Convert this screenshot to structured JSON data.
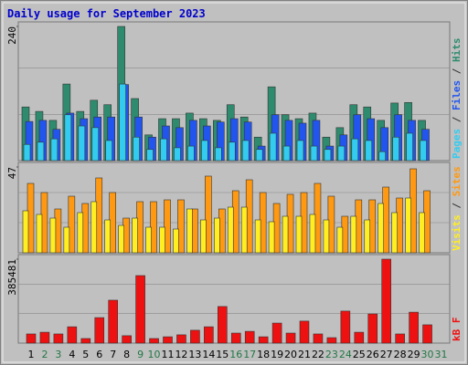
{
  "chart_data": [
    {
      "type": "bar",
      "title": "Daily usage for September 2023",
      "ylim": [
        0,
        240
      ],
      "yticks": [
        240
      ],
      "series": [
        {
          "name": "Hits",
          "color": "#2e8b6e",
          "values": [
            96,
            88,
            72,
            137,
            88,
            108,
            100,
            240,
            111,
            46,
            75,
            75,
            85,
            75,
            72,
            100,
            78,
            42,
            132,
            82,
            75,
            85,
            42,
            59,
            100,
            96,
            72,
            103,
            104,
            72,
            null
          ]
        },
        {
          "name": "Files",
          "color": "#2255ee",
          "values": [
            70,
            72,
            56,
            85,
            75,
            78,
            78,
            136,
            78,
            42,
            62,
            59,
            72,
            62,
            69,
            75,
            69,
            26,
            82,
            72,
            67,
            72,
            26,
            46,
            82,
            75,
            59,
            82,
            72,
            56,
            null
          ]
        },
        {
          "name": "Pages",
          "color": "#33ccf0",
          "values": [
            29,
            33,
            39,
            82,
            62,
            59,
            36,
            137,
            42,
            20,
            39,
            23,
            26,
            36,
            23,
            33,
            36,
            20,
            49,
            26,
            36,
            26,
            20,
            26,
            39,
            36,
            16,
            42,
            49,
            36,
            null
          ]
        }
      ]
    },
    {
      "type": "bar",
      "ylim": [
        0,
        47
      ],
      "yticks": [
        47
      ],
      "series": [
        {
          "name": "Sites",
          "color": "#ff9911",
          "values": [
            38,
            33,
            24,
            31,
            27,
            41,
            33,
            19,
            28,
            28,
            29,
            29,
            24,
            42,
            24,
            34,
            40,
            33,
            27,
            32,
            33,
            38,
            31,
            20,
            29,
            29,
            36,
            30,
            46,
            34,
            null
          ]
        },
        {
          "name": "Visits",
          "color": "#ffee22",
          "values": [
            23,
            21,
            19,
            14,
            22,
            28,
            18,
            15,
            19,
            14,
            14,
            13,
            24,
            18,
            19,
            25,
            25,
            18,
            17,
            20,
            20,
            21,
            18,
            14,
            20,
            18,
            27,
            22,
            30,
            22,
            null
          ]
        }
      ]
    },
    {
      "type": "bar",
      "ylim": [
        0,
        385481
      ],
      "yticks": [
        385481
      ],
      "categories": [
        "1",
        "2",
        "3",
        "4",
        "5",
        "6",
        "7",
        "8",
        "9",
        "10",
        "11",
        "12",
        "13",
        "14",
        "15",
        "16",
        "17",
        "18",
        "19",
        "20",
        "21",
        "22",
        "23",
        "24",
        "25",
        "26",
        "27",
        "28",
        "29",
        "30",
        "31"
      ],
      "label_colors": [
        "#000000",
        "#227744",
        "#227744",
        "#000000",
        "#000000",
        "#000000",
        "#000000",
        "#000000",
        "#227744",
        "#227744",
        "#000000",
        "#000000",
        "#000000",
        "#000000",
        "#000000",
        "#227744",
        "#227744",
        "#000000",
        "#000000",
        "#000000",
        "#000000",
        "#000000",
        "#227744",
        "#227744",
        "#000000",
        "#000000",
        "#000000",
        "#000000",
        "#000000",
        "#227744",
        "#227744"
      ],
      "series": [
        {
          "name": "kB F",
          "color": "#ee1111",
          "values": [
            42000,
            50000,
            42000,
            75000,
            21000,
            117000,
            197000,
            34000,
            310000,
            21000,
            29000,
            38000,
            59000,
            75000,
            168000,
            46000,
            54000,
            29000,
            92000,
            46000,
            101000,
            42000,
            25000,
            147000,
            50000,
            134000,
            385481,
            42000,
            142000,
            84000,
            null
          ]
        }
      ]
    }
  ]
}
